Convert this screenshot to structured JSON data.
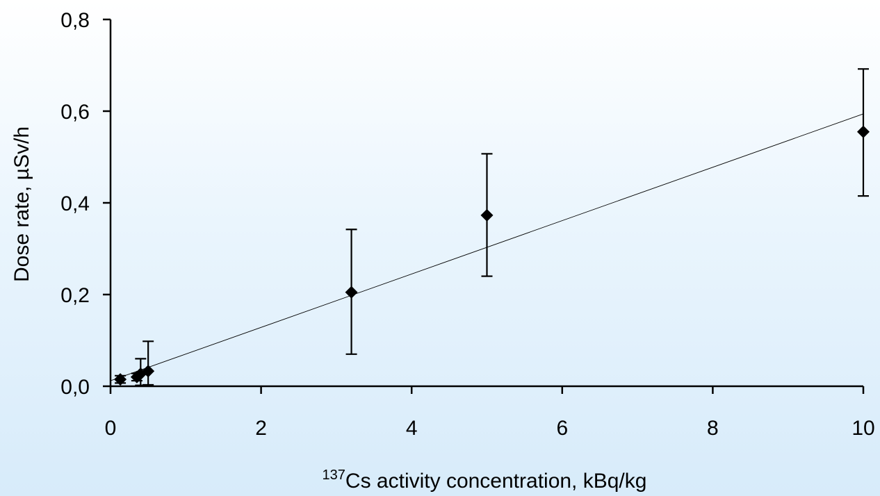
{
  "chart_data": {
    "type": "scatter",
    "title": "",
    "xlabel_sup": "137",
    "xlabel": "Cs activity concentration, kBq/kg",
    "ylabel": "Dose rate, µSv/h",
    "xlim": [
      0,
      10
    ],
    "ylim": [
      0,
      0.8
    ],
    "x_ticks": [
      0,
      2,
      4,
      6,
      8,
      10
    ],
    "x_tick_labels": [
      "0",
      "2",
      "4",
      "6",
      "8",
      "10"
    ],
    "y_ticks": [
      0,
      0.2,
      0.4,
      0.6,
      0.8
    ],
    "y_tick_labels": [
      "0,0",
      "0,2",
      "0,4",
      "0,6",
      "0,8"
    ],
    "grid": false,
    "series": [
      {
        "marker": "diamond",
        "color": "#000000",
        "points": [
          {
            "x": 0.13,
            "y": 0.015,
            "err_low": 0.008,
            "err_high": 0.008
          },
          {
            "x": 0.35,
            "y": 0.02,
            "err_low": 0.008,
            "err_high": 0.008
          },
          {
            "x": 0.4,
            "y": 0.027,
            "err_low": 0.025,
            "err_high": 0.033
          },
          {
            "x": 0.5,
            "y": 0.033,
            "err_low": 0.03,
            "err_high": 0.065
          },
          {
            "x": 3.2,
            "y": 0.205,
            "err_low": 0.135,
            "err_high": 0.137
          },
          {
            "x": 5.0,
            "y": 0.373,
            "err_low": 0.133,
            "err_high": 0.134
          },
          {
            "x": 10.0,
            "y": 0.555,
            "err_low": 0.14,
            "err_high": 0.137
          }
        ]
      }
    ],
    "trendline": {
      "type": "linear",
      "x": [
        0,
        10
      ],
      "y": [
        0.012,
        0.594
      ],
      "color": "#000000"
    }
  }
}
